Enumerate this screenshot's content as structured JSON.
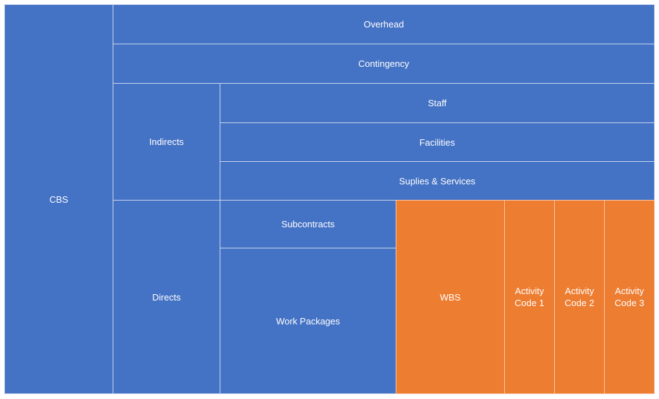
{
  "colors": {
    "primary": "#4472c4",
    "highlight": "#ed7d31",
    "border": "#c9d6ee"
  },
  "nodes": {
    "cbs": "CBS",
    "overhead": "Overhead",
    "contingency": "Contingency",
    "indirects": "Indirects",
    "staff": "Staff",
    "facilities": "Facilities",
    "supplies_services": "Suplies & Services",
    "directs": "Directs",
    "subcontracts": "Subcontracts",
    "work_packages": "Work Packages",
    "wbs": "WBS",
    "activity_code_1": "Activity\nCode 1",
    "activity_code_2": "Activity\nCode 2",
    "activity_code_3": "Activity\nCode 3"
  }
}
